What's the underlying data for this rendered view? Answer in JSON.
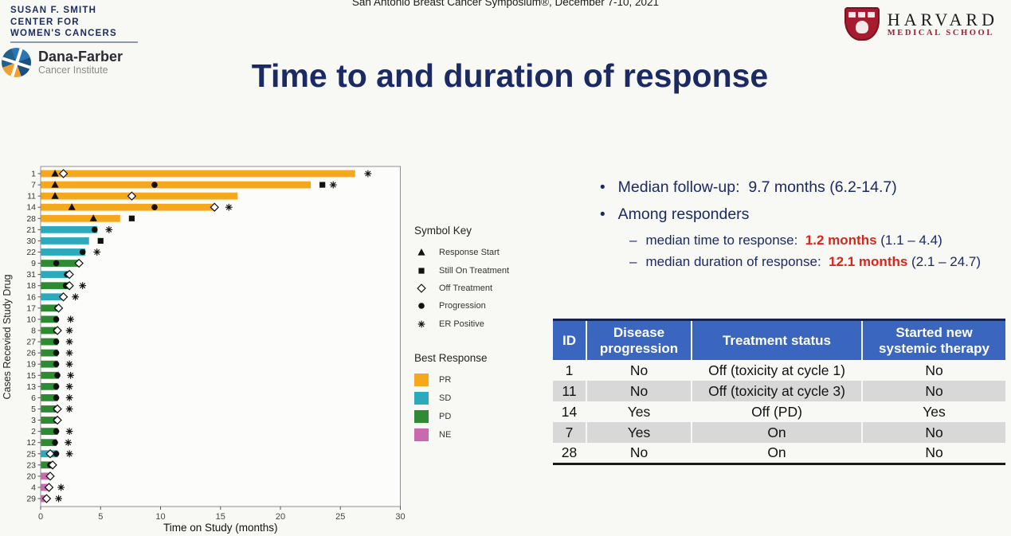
{
  "slide": {
    "conference_line": "San Antonio Breast Cancer Symposium®, December 7-10, 2021",
    "title": "Time to and duration of response"
  },
  "logos": {
    "smith_center": {
      "line1": "SUSAN F. SMITH",
      "line2": "CENTER FOR",
      "line3": "WOMEN'S CANCERS"
    },
    "dana_farber": {
      "name": "Dana-Farber",
      "subtitle": "Cancer Institute"
    },
    "harvard": {
      "name": "HARVARD",
      "subtitle": "MEDICAL SCHOOL"
    }
  },
  "chart_data": {
    "type": "bar",
    "variant": "swimmer-plot",
    "title": "",
    "xlabel": "Time on Study (months)",
    "ylabel": "Cases Recevied Study Drug",
    "xlim": [
      0,
      30
    ],
    "xticks": [
      0,
      5,
      10,
      15,
      20,
      25,
      30
    ],
    "grid": false,
    "bar_colors": {
      "PR": "#f5a81c",
      "SD": "#2ca9bc",
      "PD": "#2e8b33",
      "NE": "#c76bae"
    },
    "marker_meanings": {
      "triangle": "Response Start",
      "square": "Still On Treatment",
      "diamond": "Off Treatment",
      "circle": "Progression",
      "asterisk": "ER Positive"
    },
    "rows": [
      {
        "id": "1",
        "best_response": "PR",
        "months": 26.2,
        "markers": [
          [
            "triangle",
            1.2
          ],
          [
            "diamond",
            1.9
          ],
          [
            "asterisk",
            27.3
          ]
        ]
      },
      {
        "id": "7",
        "best_response": "PR",
        "months": 22.5,
        "markers": [
          [
            "triangle",
            1.2
          ],
          [
            "circle",
            9.5
          ],
          [
            "square",
            23.5
          ],
          [
            "asterisk",
            24.4
          ]
        ]
      },
      {
        "id": "11",
        "best_response": "PR",
        "months": 16.4,
        "markers": [
          [
            "triangle",
            1.2
          ],
          [
            "diamond",
            7.6
          ]
        ]
      },
      {
        "id": "14",
        "best_response": "PR",
        "months": 14.5,
        "markers": [
          [
            "triangle",
            2.6
          ],
          [
            "circle",
            9.5
          ],
          [
            "diamond",
            14.5
          ],
          [
            "asterisk",
            15.7
          ]
        ]
      },
      {
        "id": "28",
        "best_response": "PR",
        "months": 6.6,
        "markers": [
          [
            "triangle",
            4.4
          ],
          [
            "square",
            7.6
          ]
        ]
      },
      {
        "id": "21",
        "best_response": "SD",
        "months": 4.7,
        "markers": [
          [
            "circle",
            4.5
          ],
          [
            "asterisk",
            5.7
          ]
        ]
      },
      {
        "id": "30",
        "best_response": "SD",
        "months": 4.0,
        "markers": [
          [
            "square",
            5.0
          ]
        ]
      },
      {
        "id": "22",
        "best_response": "SD",
        "months": 3.7,
        "markers": [
          [
            "circle",
            3.5
          ],
          [
            "asterisk",
            4.7
          ]
        ]
      },
      {
        "id": "9",
        "best_response": "PD",
        "months": 3.2,
        "markers": [
          [
            "circle",
            1.3
          ],
          [
            "diamond",
            3.2
          ]
        ]
      },
      {
        "id": "31",
        "best_response": "SD",
        "months": 2.4,
        "markers": [
          [
            "circle",
            2.2
          ],
          [
            "diamond",
            2.4
          ]
        ]
      },
      {
        "id": "18",
        "best_response": "PD",
        "months": 2.4,
        "markers": [
          [
            "circle",
            2.1
          ],
          [
            "diamond",
            2.4
          ],
          [
            "asterisk",
            3.5
          ]
        ]
      },
      {
        "id": "16",
        "best_response": "SD",
        "months": 1.9,
        "markers": [
          [
            "diamond",
            1.9
          ],
          [
            "asterisk",
            2.9
          ]
        ]
      },
      {
        "id": "17",
        "best_response": "PD",
        "months": 1.5,
        "markers": [
          [
            "circle",
            1.4
          ],
          [
            "diamond",
            1.5
          ]
        ]
      },
      {
        "id": "10",
        "best_response": "PD",
        "months": 1.4,
        "markers": [
          [
            "circle",
            1.3
          ],
          [
            "asterisk",
            2.5
          ]
        ]
      },
      {
        "id": "8",
        "best_response": "PD",
        "months": 1.4,
        "markers": [
          [
            "circle",
            1.3
          ],
          [
            "diamond",
            1.4
          ],
          [
            "asterisk",
            2.4
          ]
        ]
      },
      {
        "id": "27",
        "best_response": "PD",
        "months": 1.4,
        "markers": [
          [
            "circle",
            1.3
          ],
          [
            "asterisk",
            2.4
          ]
        ]
      },
      {
        "id": "26",
        "best_response": "PD",
        "months": 1.4,
        "markers": [
          [
            "circle",
            1.3
          ],
          [
            "asterisk",
            2.4
          ]
        ]
      },
      {
        "id": "19",
        "best_response": "PD",
        "months": 1.4,
        "markers": [
          [
            "circle",
            1.3
          ],
          [
            "asterisk",
            2.4
          ]
        ]
      },
      {
        "id": "15",
        "best_response": "PD",
        "months": 1.5,
        "markers": [
          [
            "circle",
            1.4
          ],
          [
            "asterisk",
            2.5
          ]
        ]
      },
      {
        "id": "13",
        "best_response": "PD",
        "months": 1.4,
        "markers": [
          [
            "circle",
            1.3
          ],
          [
            "asterisk",
            2.4
          ]
        ]
      },
      {
        "id": "6",
        "best_response": "PD",
        "months": 1.4,
        "markers": [
          [
            "circle",
            1.3
          ],
          [
            "asterisk",
            2.4
          ]
        ]
      },
      {
        "id": "5",
        "best_response": "PD",
        "months": 1.4,
        "markers": [
          [
            "circle",
            1.3
          ],
          [
            "diamond",
            1.4
          ],
          [
            "asterisk",
            2.4
          ]
        ]
      },
      {
        "id": "3",
        "best_response": "PD",
        "months": 1.4,
        "markers": [
          [
            "circle",
            1.3
          ],
          [
            "diamond",
            1.4
          ]
        ]
      },
      {
        "id": "2",
        "best_response": "PD",
        "months": 1.4,
        "markers": [
          [
            "circle",
            1.3
          ],
          [
            "asterisk",
            2.4
          ]
        ]
      },
      {
        "id": "12",
        "best_response": "PD",
        "months": 1.3,
        "markers": [
          [
            "circle",
            1.2
          ],
          [
            "asterisk",
            2.3
          ]
        ]
      },
      {
        "id": "25",
        "best_response": "SD",
        "months": 1.4,
        "markers": [
          [
            "diamond",
            0.8
          ],
          [
            "circle",
            1.3
          ],
          [
            "asterisk",
            2.4
          ]
        ]
      },
      {
        "id": "23",
        "best_response": "PD",
        "months": 1.0,
        "markers": [
          [
            "circle",
            0.8
          ],
          [
            "diamond",
            1.0
          ]
        ]
      },
      {
        "id": "20",
        "best_response": "NE",
        "months": 0.8,
        "markers": [
          [
            "diamond",
            0.8
          ]
        ]
      },
      {
        "id": "4",
        "best_response": "NE",
        "months": 0.7,
        "markers": [
          [
            "diamond",
            0.7
          ],
          [
            "asterisk",
            1.7
          ]
        ]
      },
      {
        "id": "29",
        "best_response": "NE",
        "months": 0.5,
        "markers": [
          [
            "diamond",
            0.5
          ],
          [
            "asterisk",
            1.5
          ]
        ]
      }
    ]
  },
  "symbol_key": {
    "title": "Symbol Key",
    "items": [
      {
        "marker": "triangle",
        "label": "Response Start"
      },
      {
        "marker": "square",
        "label": "Still On Treatment"
      },
      {
        "marker": "diamond",
        "label": "Off Treatment"
      },
      {
        "marker": "circle",
        "label": "Progression"
      },
      {
        "marker": "asterisk",
        "label": "ER Positive"
      }
    ]
  },
  "best_response_key": {
    "title": "Best Response",
    "items": [
      {
        "label": "PR",
        "color": "#f5a81c"
      },
      {
        "label": "SD",
        "color": "#2ca9bc"
      },
      {
        "label": "PD",
        "color": "#2e8b33"
      },
      {
        "label": "NE",
        "color": "#c76bae"
      }
    ]
  },
  "notes": {
    "bullet1": "Median follow-up:  9.7 months (6.2-14.7)",
    "bullet2": "Among responders",
    "sub1": {
      "prefix": "median time to response:  ",
      "highlight": "1.2 months",
      "suffix": " (1.1 – 4.4)"
    },
    "sub2": {
      "prefix": "median duration of response:  ",
      "highlight": "12.1 months",
      "suffix": " (2.1 – 24.7)"
    }
  },
  "table": {
    "headers": [
      "ID",
      "Disease progression",
      "Treatment status",
      "Started new systemic therapy"
    ],
    "rows": [
      [
        "1",
        "No",
        "Off (toxicity at cycle 1)",
        "No"
      ],
      [
        "11",
        "No",
        "Off (toxicity at cycle 3)",
        "No"
      ],
      [
        "14",
        "Yes",
        "Off (PD)",
        "Yes"
      ],
      [
        "7",
        "Yes",
        "On",
        "No"
      ],
      [
        "28",
        "No",
        "On",
        "No"
      ]
    ]
  }
}
